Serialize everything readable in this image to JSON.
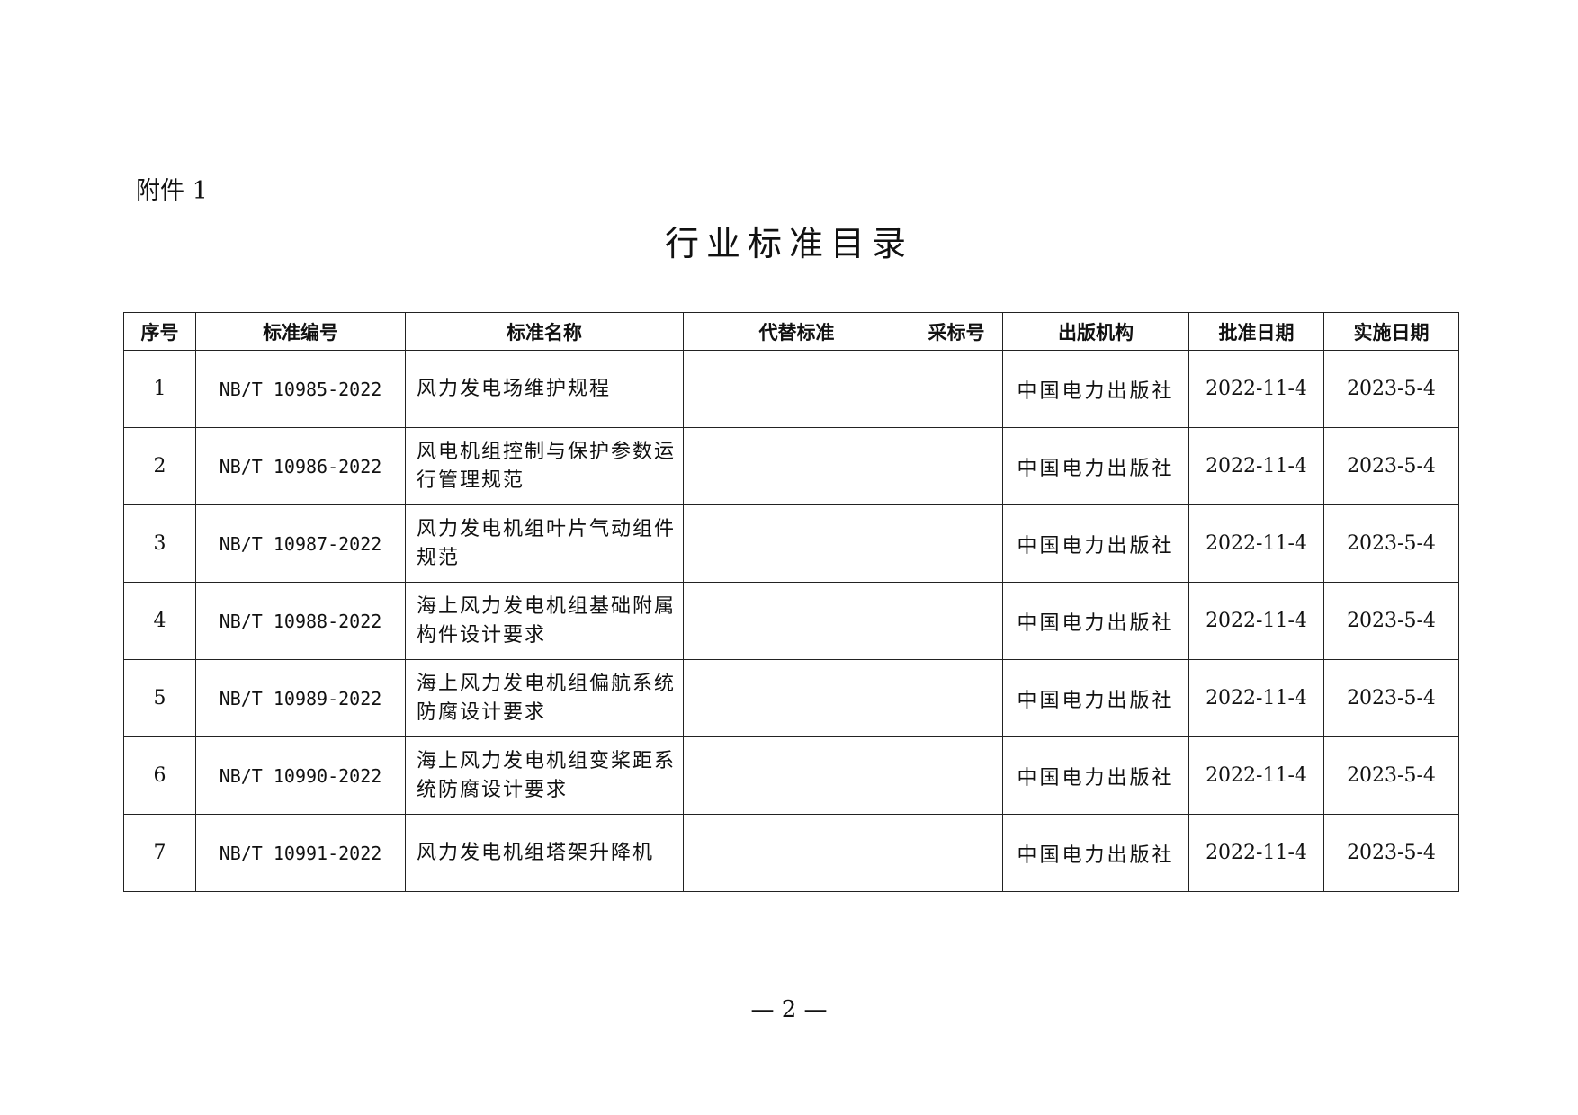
{
  "attachment_label": "附件 1",
  "title": "行业标准目录",
  "table": {
    "headers": [
      "序号",
      "标准编号",
      "标准名称",
      "代替标准",
      "采标号",
      "出版机构",
      "批准日期",
      "实施日期"
    ],
    "rows": [
      {
        "no": "1",
        "code": "NB/T 10985-2022",
        "name": "风力发电场维护规程",
        "replaces": "",
        "adopted": "",
        "publisher": "中国电力出版社",
        "approved": "2022-11-4",
        "effective": "2023-5-4"
      },
      {
        "no": "2",
        "code": "NB/T 10986-2022",
        "name": "风电机组控制与保护参数运行管理规范",
        "replaces": "",
        "adopted": "",
        "publisher": "中国电力出版社",
        "approved": "2022-11-4",
        "effective": "2023-5-4"
      },
      {
        "no": "3",
        "code": "NB/T 10987-2022",
        "name": "风力发电机组叶片气动组件规范",
        "replaces": "",
        "adopted": "",
        "publisher": "中国电力出版社",
        "approved": "2022-11-4",
        "effective": "2023-5-4"
      },
      {
        "no": "4",
        "code": "NB/T 10988-2022",
        "name": "海上风力发电机组基础附属构件设计要求",
        "replaces": "",
        "adopted": "",
        "publisher": "中国电力出版社",
        "approved": "2022-11-4",
        "effective": "2023-5-4"
      },
      {
        "no": "5",
        "code": "NB/T 10989-2022",
        "name": "海上风力发电机组偏航系统防腐设计要求",
        "replaces": "",
        "adopted": "",
        "publisher": "中国电力出版社",
        "approved": "2022-11-4",
        "effective": "2023-5-4"
      },
      {
        "no": "6",
        "code": "NB/T 10990-2022",
        "name": "海上风力发电机组变桨距系统防腐设计要求",
        "replaces": "",
        "adopted": "",
        "publisher": "中国电力出版社",
        "approved": "2022-11-4",
        "effective": "2023-5-4"
      },
      {
        "no": "7",
        "code": "NB/T 10991-2022",
        "name": "风力发电机组塔架升降机",
        "replaces": "",
        "adopted": "",
        "publisher": "中国电力出版社",
        "approved": "2022-11-4",
        "effective": "2023-5-4"
      }
    ]
  },
  "page_number": "— 2 —"
}
